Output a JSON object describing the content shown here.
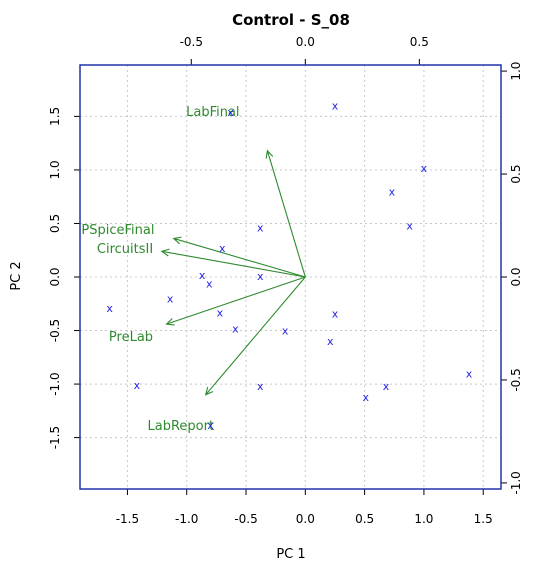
{
  "chart_data": {
    "type": "scatter",
    "title": "Control - S_08",
    "xlabel": "PC 1",
    "ylabel": "PC 2",
    "xlim": [
      -1.9,
      1.65
    ],
    "ylim": [
      -1.98,
      1.98
    ],
    "x_ticks": [
      -1.5,
      -1.0,
      -0.5,
      0.0,
      0.5,
      1.0,
      1.5
    ],
    "x_tick_labels": [
      "-1.5",
      "-1.0",
      "-0.5",
      "0.0",
      "0.5",
      "1.0",
      "1.5"
    ],
    "y_ticks": [
      -1.5,
      -1.0,
      -0.5,
      0.0,
      0.5,
      1.0,
      1.5
    ],
    "y_tick_labels": [
      "-1.5",
      "-1.0",
      "-0.5",
      "0.0",
      "0.5",
      "1.0",
      "1.5"
    ],
    "top_ticks": [
      -0.5,
      0.0,
      0.5
    ],
    "top_tick_labels": [
      "-0.5",
      "0.0",
      "0.5"
    ],
    "right_ticks": [
      -1.0,
      -0.5,
      0.0,
      0.5,
      1.0
    ],
    "right_tick_labels": [
      "-1.0",
      "-0.5",
      "0.0",
      "0.5",
      "1.0"
    ],
    "top_scale": 0.52,
    "grid": true,
    "colors": {
      "scores": "#2424e6",
      "loadings": "#2e8a2e",
      "box": "#2233aa"
    },
    "scores": {
      "marker": "x",
      "x": [
        -0.63,
        0.25,
        1.0,
        0.73,
        0.88,
        -0.38,
        -0.7,
        -0.87,
        -0.38,
        -0.81,
        -1.65,
        -1.14,
        -0.72,
        -0.59,
        -0.17,
        0.25,
        0.21,
        -1.42,
        -0.38,
        0.68,
        0.51,
        -0.8,
        1.38
      ],
      "y": [
        1.54,
        1.6,
        1.02,
        0.8,
        0.48,
        0.46,
        0.27,
        0.02,
        0.01,
        -0.06,
        -0.29,
        -0.2,
        -0.33,
        -0.48,
        -0.5,
        -0.34,
        -0.6,
        -1.01,
        -1.02,
        -1.02,
        -1.12,
        -1.38,
        -0.9
      ]
    },
    "loadings": [
      {
        "name": "LabFinal",
        "x": -0.32,
        "y": 1.18
      },
      {
        "name": "PSpiceFinal",
        "x": -1.11,
        "y": 0.36
      },
      {
        "name": "CircuitsII",
        "x": -1.21,
        "y": 0.24
      },
      {
        "name": "PreLab",
        "x": -1.17,
        "y": -0.44
      },
      {
        "name": "LabReport",
        "x": -0.84,
        "y": -1.1
      }
    ],
    "loading_label_positions": [
      {
        "name": "LabFinal",
        "x": -0.78,
        "y": 1.55
      },
      {
        "name": "PSpiceFinal",
        "x": -1.58,
        "y": 0.45
      },
      {
        "name": "CircuitsII",
        "x": -1.52,
        "y": 0.27
      },
      {
        "name": "PreLab",
        "x": -1.47,
        "y": -0.55
      },
      {
        "name": "LabReport",
        "x": -1.05,
        "y": -1.38
      }
    ]
  }
}
